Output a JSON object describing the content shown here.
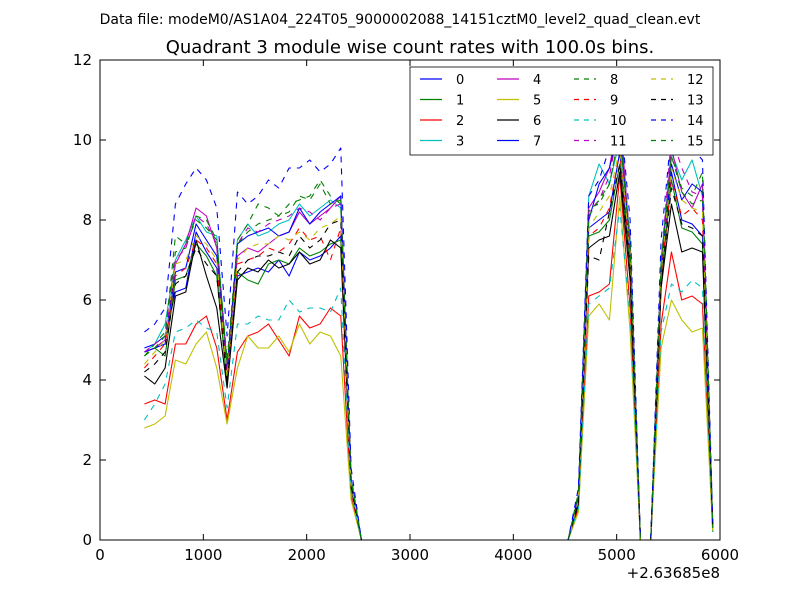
{
  "header_note": "Data file: modeM0/AS1A04_224T05_9000002088_14151cztM0_level2_quad_clean.evt",
  "chart_data": {
    "type": "line",
    "title": "Quadrant 3 module wise count rates with 100.0s bins.",
    "xlabel": "",
    "ylabel": "",
    "x_offset_label": "+2.63685e8",
    "xlim": [
      0,
      6000
    ],
    "ylim": [
      0,
      12
    ],
    "xticks": [
      "0",
      "1000",
      "2000",
      "3000",
      "4000",
      "5000",
      "6000"
    ],
    "yticks": [
      "0",
      "2",
      "4",
      "6",
      "8",
      "10",
      "12"
    ],
    "grid": false,
    "legend_position": "upper-right",
    "legend_columns": 4,
    "x": [
      430,
      530,
      630,
      730,
      830,
      930,
      1030,
      1130,
      1230,
      1330,
      1430,
      1530,
      1630,
      1730,
      1830,
      1930,
      2030,
      2130,
      2230,
      2330,
      2430,
      2530,
      3530,
      4530,
      4630,
      4730,
      4830,
      4930,
      5030,
      5130,
      5230,
      5330,
      5430,
      5530,
      5630,
      5730,
      5830,
      5930
    ],
    "series": [
      {
        "name": "0",
        "color": "#0000ff",
        "dash": "solid",
        "values": [
          4.8,
          4.9,
          5.1,
          6.2,
          6.3,
          7.7,
          7.2,
          6.8,
          4.0,
          6.6,
          6.7,
          6.8,
          6.7,
          7.0,
          6.6,
          7.2,
          7.0,
          7.1,
          7.3,
          7.6,
          1.4,
          0.0,
          0.0,
          0.0,
          1.0,
          7.8,
          8.0,
          8.2,
          9.7,
          7.0,
          0.0,
          0.0,
          6.6,
          9.2,
          8.0,
          7.9,
          7.6,
          0.3
        ]
      },
      {
        "name": "1",
        "color": "#008000",
        "dash": "solid",
        "values": [
          4.7,
          4.8,
          4.6,
          6.5,
          6.6,
          7.4,
          7.1,
          6.6,
          3.9,
          6.7,
          6.5,
          6.4,
          6.9,
          7.0,
          6.9,
          7.3,
          7.1,
          7.2,
          7.4,
          7.5,
          1.3,
          0.0,
          0.0,
          0.0,
          0.9,
          7.6,
          7.7,
          8.0,
          9.4,
          6.8,
          0.0,
          0.0,
          6.4,
          9.0,
          7.8,
          7.7,
          7.4,
          0.3
        ]
      },
      {
        "name": "2",
        "color": "#ff0000",
        "dash": "solid",
        "values": [
          3.4,
          3.5,
          3.4,
          4.9,
          4.9,
          5.4,
          5.6,
          4.8,
          3.0,
          4.7,
          5.1,
          5.2,
          5.4,
          5.0,
          4.6,
          5.6,
          5.3,
          5.4,
          5.8,
          5.6,
          1.1,
          0.0,
          0.0,
          0.0,
          0.8,
          6.1,
          6.2,
          6.4,
          9.1,
          5.8,
          0.0,
          0.0,
          5.4,
          7.2,
          6.0,
          6.1,
          5.9,
          0.2
        ]
      },
      {
        "name": "3",
        "color": "#00bfbf",
        "dash": "solid",
        "values": [
          4.7,
          4.9,
          5.4,
          7.0,
          7.5,
          8.1,
          7.7,
          7.6,
          4.3,
          7.5,
          7.9,
          7.6,
          7.7,
          7.9,
          8.0,
          8.4,
          8.1,
          8.3,
          8.5,
          8.3,
          1.5,
          0.0,
          0.0,
          0.0,
          1.1,
          8.6,
          9.4,
          8.9,
          10.0,
          7.6,
          0.0,
          0.0,
          7.0,
          9.7,
          9.0,
          9.5,
          8.6,
          0.3
        ]
      },
      {
        "name": "4",
        "color": "#bf00bf",
        "dash": "solid",
        "values": [
          4.7,
          4.8,
          5.0,
          6.9,
          7.4,
          8.3,
          8.1,
          7.3,
          4.3,
          7.1,
          7.3,
          7.2,
          7.4,
          7.6,
          7.7,
          8.2,
          7.9,
          8.1,
          8.3,
          8.6,
          1.5,
          0.0,
          0.0,
          0.0,
          1.1,
          8.3,
          8.7,
          9.3,
          10.8,
          7.3,
          0.0,
          0.0,
          6.8,
          9.8,
          8.7,
          8.3,
          8.9,
          0.3
        ]
      },
      {
        "name": "5",
        "color": "#bfbf00",
        "dash": "solid",
        "values": [
          2.8,
          2.9,
          3.1,
          4.5,
          4.4,
          4.9,
          5.2,
          4.3,
          2.9,
          4.3,
          5.1,
          4.8,
          4.8,
          5.1,
          4.7,
          5.4,
          4.9,
          5.2,
          5.1,
          4.6,
          1.0,
          0.0,
          0.0,
          0.0,
          0.7,
          5.6,
          5.9,
          5.5,
          8.6,
          5.2,
          0.0,
          0.0,
          4.8,
          6.0,
          5.5,
          5.2,
          5.3,
          0.2
        ]
      },
      {
        "name": "6",
        "color": "#000000",
        "dash": "solid",
        "values": [
          4.1,
          3.9,
          4.3,
          6.1,
          6.2,
          7.5,
          6.6,
          5.8,
          3.8,
          6.5,
          6.8,
          6.7,
          7.0,
          6.8,
          6.9,
          7.2,
          6.9,
          7.0,
          7.5,
          7.3,
          1.3,
          0.0,
          0.0,
          0.0,
          0.9,
          7.3,
          7.5,
          7.6,
          9.2,
          6.5,
          0.0,
          0.0,
          6.3,
          8.4,
          7.2,
          7.3,
          7.2,
          0.3
        ]
      },
      {
        "name": "7",
        "color": "#0000ff",
        "dash": "solid",
        "values": [
          4.7,
          4.8,
          4.9,
          6.7,
          6.8,
          7.9,
          7.5,
          7.1,
          4.2,
          7.4,
          7.6,
          7.7,
          7.8,
          7.6,
          7.7,
          8.3,
          7.9,
          8.2,
          8.4,
          8.6,
          1.5,
          0.0,
          0.0,
          0.0,
          1.1,
          8.0,
          8.9,
          9.3,
          10.3,
          7.3,
          0.0,
          0.0,
          6.8,
          9.4,
          8.5,
          8.9,
          8.7,
          0.3
        ]
      },
      {
        "name": "8",
        "color": "#008000",
        "dash": "dashed",
        "values": [
          4.6,
          4.9,
          5.2,
          7.2,
          7.3,
          8.1,
          8.0,
          7.5,
          4.5,
          7.5,
          7.9,
          8.4,
          8.3,
          8.1,
          8.2,
          8.6,
          8.5,
          8.9,
          8.4,
          8.5,
          1.6,
          0.0,
          0.0,
          0.0,
          1.2,
          8.3,
          8.4,
          8.9,
          10.2,
          7.4,
          0.0,
          0.0,
          6.9,
          9.6,
          8.7,
          8.4,
          8.5,
          0.3
        ]
      },
      {
        "name": "9",
        "color": "#ff0000",
        "dash": "dashed",
        "values": [
          4.3,
          4.6,
          4.9,
          6.6,
          6.8,
          7.5,
          7.3,
          6.9,
          4.0,
          6.9,
          7.0,
          7.1,
          7.3,
          7.2,
          7.4,
          7.8,
          7.5,
          7.6,
          7.0,
          7.8,
          1.4,
          0.0,
          0.0,
          0.0,
          1.0,
          7.6,
          7.8,
          8.3,
          9.7,
          7.1,
          0.0,
          0.0,
          6.6,
          9.0,
          8.1,
          8.3,
          8.0,
          0.3
        ]
      },
      {
        "name": "10",
        "color": "#00bfbf",
        "dash": "dashed",
        "values": [
          3.0,
          3.4,
          3.9,
          5.2,
          5.3,
          5.5,
          5.3,
          5.2,
          3.3,
          5.4,
          5.4,
          5.6,
          5.5,
          5.5,
          6.0,
          5.7,
          5.8,
          5.8,
          5.7,
          6.3,
          1.2,
          0.0,
          0.0,
          0.0,
          0.8,
          5.9,
          6.1,
          6.3,
          8.3,
          5.6,
          0.0,
          0.0,
          5.2,
          6.4,
          6.2,
          6.5,
          6.3,
          0.2
        ]
      },
      {
        "name": "11",
        "color": "#bf00bf",
        "dash": "dashed",
        "values": [
          4.7,
          4.9,
          5.1,
          7.0,
          7.3,
          8.1,
          7.9,
          7.4,
          4.4,
          7.4,
          7.8,
          7.7,
          7.9,
          8.0,
          8.1,
          8.3,
          8.2,
          8.0,
          8.3,
          8.4,
          1.5,
          0.0,
          0.0,
          0.0,
          1.1,
          8.2,
          8.5,
          9.1,
          10.5,
          7.5,
          0.0,
          0.0,
          6.9,
          10.1,
          9.3,
          8.7,
          8.6,
          0.3
        ]
      },
      {
        "name": "12",
        "color": "#bfbf00",
        "dash": "dashed",
        "values": [
          4.4,
          4.7,
          5.0,
          6.9,
          7.0,
          7.6,
          7.4,
          7.0,
          4.1,
          7.0,
          7.3,
          7.4,
          7.4,
          7.6,
          7.5,
          7.7,
          7.5,
          7.8,
          7.9,
          8.1,
          1.4,
          0.0,
          0.0,
          0.0,
          1.0,
          7.8,
          8.2,
          8.6,
          9.8,
          7.2,
          0.0,
          0.0,
          6.7,
          9.3,
          8.5,
          8.3,
          8.2,
          0.3
        ]
      },
      {
        "name": "13",
        "color": "#000000",
        "dash": "dashed",
        "values": [
          4.2,
          4.4,
          4.7,
          6.4,
          6.6,
          7.3,
          6.9,
          6.6,
          3.9,
          6.7,
          7.0,
          7.1,
          7.1,
          7.2,
          7.1,
          7.6,
          7.3,
          7.5,
          7.9,
          8.0,
          1.4,
          0.0,
          0.0,
          0.0,
          1.0,
          7.1,
          7.0,
          8.2,
          9.4,
          6.8,
          0.0,
          0.0,
          6.4,
          8.8,
          7.9,
          7.8,
          7.6,
          0.3
        ]
      },
      {
        "name": "14",
        "color": "#0000ff",
        "dash": "dashed",
        "values": [
          5.2,
          5.4,
          5.8,
          8.4,
          8.9,
          9.3,
          9.0,
          8.3,
          5.1,
          8.7,
          8.4,
          8.6,
          9.0,
          8.8,
          9.3,
          9.3,
          9.5,
          9.2,
          9.4,
          9.8,
          1.8,
          0.0,
          0.0,
          0.0,
          1.3,
          8.6,
          9.0,
          9.8,
          10.8,
          8.0,
          0.0,
          0.0,
          7.5,
          10.2,
          10.0,
          9.8,
          9.5,
          0.4
        ]
      },
      {
        "name": "15",
        "color": "#008000",
        "dash": "dashed",
        "values": [
          4.6,
          4.8,
          5.1,
          7.6,
          7.4,
          8.0,
          7.8,
          7.5,
          4.4,
          7.4,
          7.7,
          7.9,
          8.0,
          8.1,
          8.4,
          8.5,
          8.6,
          9.0,
          8.6,
          8.4,
          1.5,
          0.0,
          0.0,
          0.0,
          1.1,
          8.1,
          8.5,
          8.9,
          10.2,
          7.4,
          0.0,
          0.0,
          6.9,
          9.6,
          8.8,
          8.6,
          9.2,
          0.3
        ]
      }
    ]
  }
}
